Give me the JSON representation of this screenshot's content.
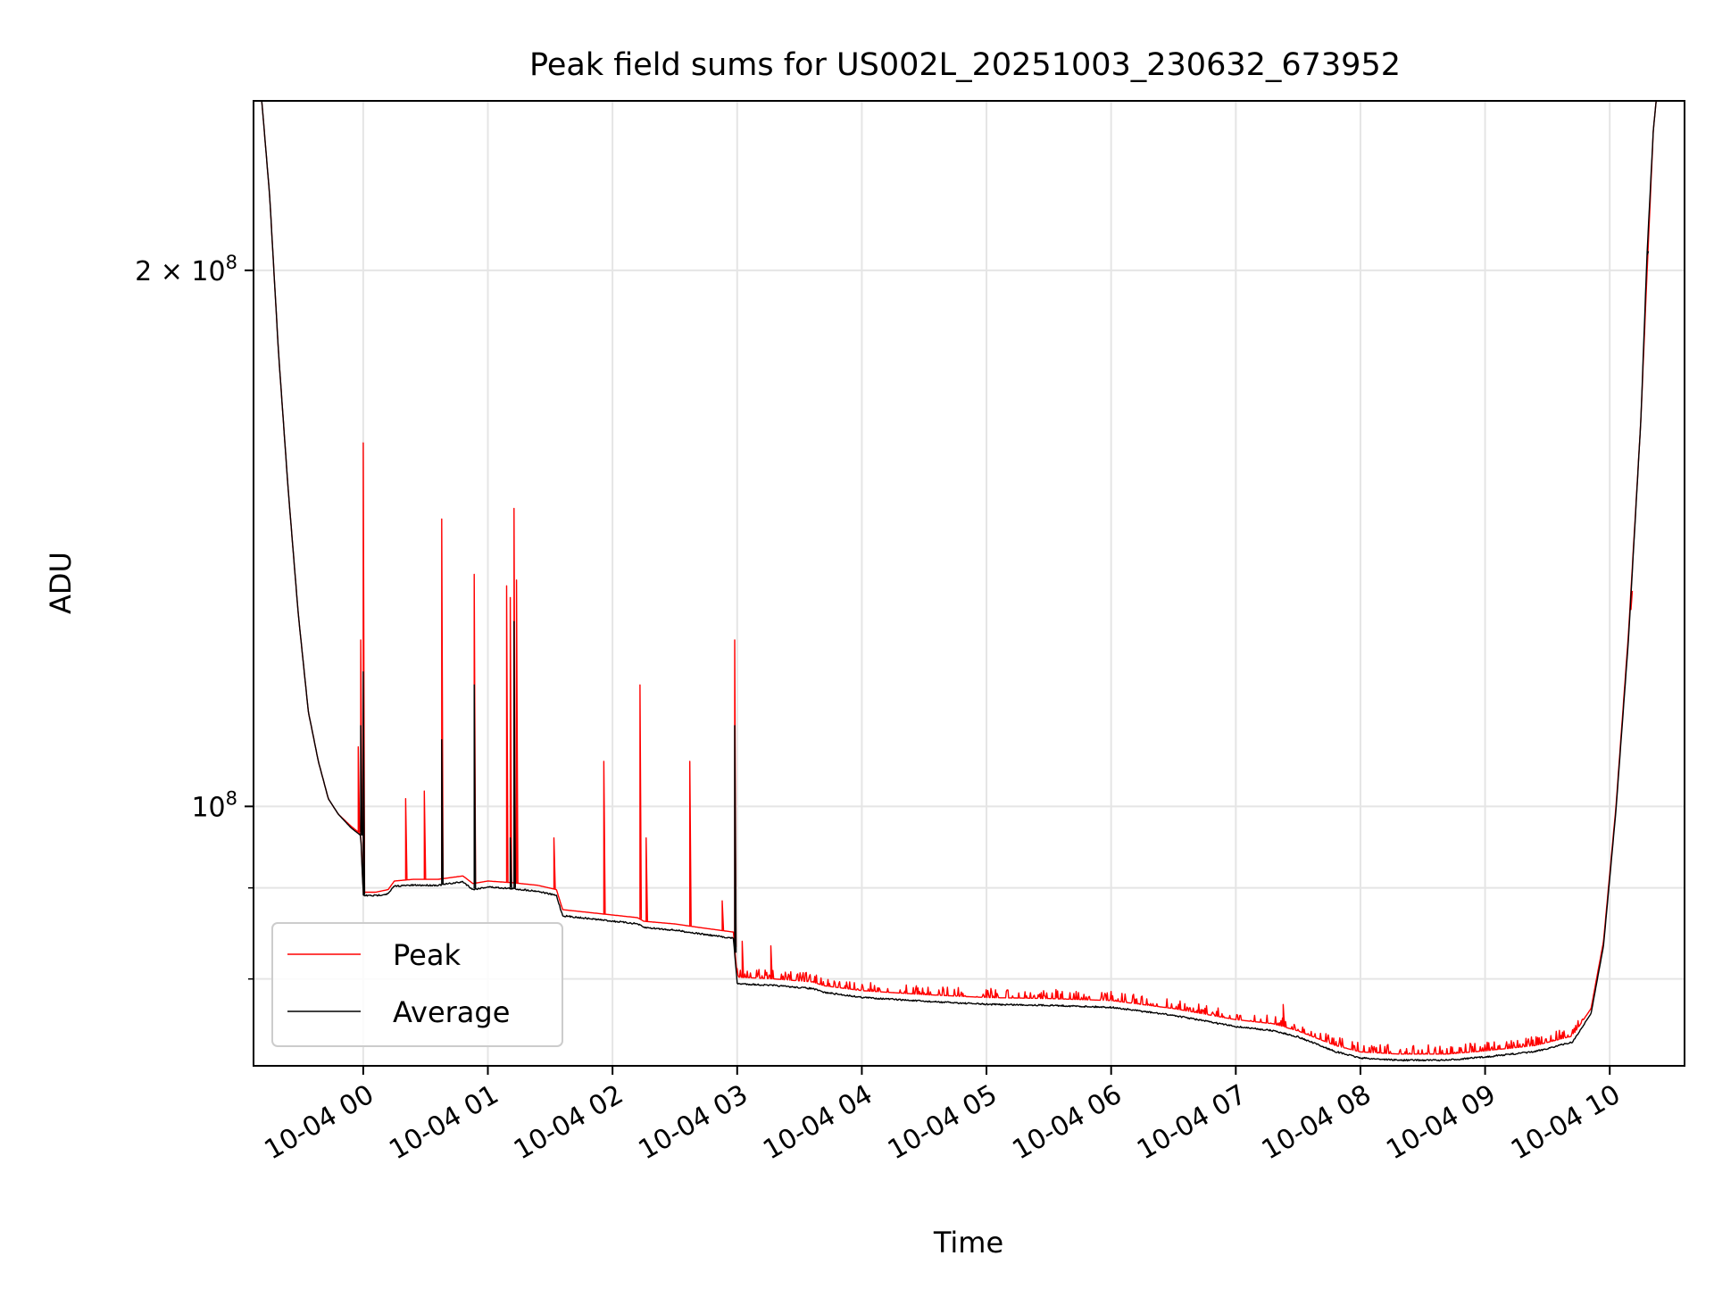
{
  "chart_data": {
    "type": "line",
    "title": "Peak field sums for US002L_20251003_230632_673952",
    "xlabel": "Time",
    "ylabel": "ADU",
    "yscale": "log",
    "ylim": [
      71500000,
      249000000
    ],
    "xlim_hours": [
      -0.88,
      10.6
    ],
    "x_unit": "hours relative to 10-04 00:00",
    "grid": true,
    "legend_position": "lower-left",
    "x_ticks": [
      {
        "value": 0,
        "label": "10-04 00"
      },
      {
        "value": 1,
        "label": "10-04 01"
      },
      {
        "value": 2,
        "label": "10-04 02"
      },
      {
        "value": 3,
        "label": "10-04 03"
      },
      {
        "value": 4,
        "label": "10-04 04"
      },
      {
        "value": 5,
        "label": "10-04 05"
      },
      {
        "value": 6,
        "label": "10-04 06"
      },
      {
        "value": 7,
        "label": "10-04 07"
      },
      {
        "value": 8,
        "label": "10-04 08"
      },
      {
        "value": 9,
        "label": "10-04 09"
      },
      {
        "value": 10,
        "label": "10-04 10"
      }
    ],
    "y_major_ticks": [
      {
        "value": 100000000,
        "base": "10",
        "exp": "8",
        "mult": ""
      },
      {
        "value": 200000000,
        "base": "10",
        "exp": "8",
        "mult": "2 × "
      }
    ],
    "y_minor_ticks": [
      80000000,
      90000000
    ],
    "series": [
      {
        "name": "Peak",
        "color": "#ff0000",
        "points": [
          [
            -0.82,
            252000000
          ],
          [
            -0.75,
            220000000
          ],
          [
            -0.68,
            180000000
          ],
          [
            -0.6,
            150000000
          ],
          [
            -0.52,
            128000000
          ],
          [
            -0.44,
            113000000
          ],
          [
            -0.36,
            106000000
          ],
          [
            -0.28,
            101000000
          ],
          [
            -0.2,
            99000000
          ],
          [
            -0.1,
            97500000
          ],
          [
            -0.02,
            96500000
          ],
          [
            0.0,
            89500000
          ],
          [
            0.1,
            89500000
          ],
          [
            0.2,
            89800000
          ],
          [
            0.25,
            90800000
          ],
          [
            0.4,
            91000000
          ],
          [
            0.6,
            91000000
          ],
          [
            0.8,
            91400000
          ],
          [
            0.88,
            90500000
          ],
          [
            1.0,
            90800000
          ],
          [
            1.2,
            90600000
          ],
          [
            1.4,
            90300000
          ],
          [
            1.55,
            89800000
          ],
          [
            1.6,
            87500000
          ],
          [
            1.8,
            87200000
          ],
          [
            2.0,
            86900000
          ],
          [
            2.2,
            86600000
          ],
          [
            2.25,
            86200000
          ],
          [
            2.5,
            85900000
          ],
          [
            2.7,
            85500000
          ],
          [
            2.97,
            85000000
          ],
          [
            3.0,
            80200000
          ],
          [
            3.3,
            80000000
          ],
          [
            3.6,
            79700000
          ],
          [
            3.7,
            79300000
          ],
          [
            4.0,
            78800000
          ],
          [
            4.5,
            78400000
          ],
          [
            5.0,
            78100000
          ],
          [
            5.5,
            78000000
          ],
          [
            6.0,
            77800000
          ],
          [
            6.5,
            77000000
          ],
          [
            7.0,
            75900000
          ],
          [
            7.3,
            75500000
          ],
          [
            7.5,
            74800000
          ],
          [
            7.8,
            73400000
          ],
          [
            8.0,
            72800000
          ],
          [
            8.3,
            72600000
          ],
          [
            8.7,
            72600000
          ],
          [
            9.0,
            72900000
          ],
          [
            9.4,
            73400000
          ],
          [
            9.7,
            74300000
          ],
          [
            9.85,
            77000000
          ],
          [
            9.95,
            84000000
          ],
          [
            10.05,
            100000000
          ],
          [
            10.15,
            125000000
          ],
          [
            10.25,
            165000000
          ],
          [
            10.3,
            200000000
          ],
          [
            10.35,
            240000000
          ],
          [
            10.38,
            252000000
          ]
        ],
        "spikes": [
          [
            -0.04,
            108000000
          ],
          [
            -0.02,
            124000000
          ],
          [
            0.0,
            160000000
          ],
          [
            0.34,
            101000000
          ],
          [
            0.49,
            102000000
          ],
          [
            0.63,
            145000000
          ],
          [
            0.89,
            135000000
          ],
          [
            1.15,
            133000000
          ],
          [
            1.18,
            131000000
          ],
          [
            1.21,
            147000000
          ],
          [
            1.23,
            134000000
          ],
          [
            1.53,
            96000000
          ],
          [
            1.93,
            106000000
          ],
          [
            2.22,
            117000000
          ],
          [
            2.27,
            96000000
          ],
          [
            2.62,
            106000000
          ],
          [
            2.88,
            88500000
          ],
          [
            2.98,
            124000000
          ],
          [
            3.04,
            84000000
          ],
          [
            3.27,
            83500000
          ],
          [
            7.38,
            77400000
          ],
          [
            10.17,
            129000000
          ]
        ]
      },
      {
        "name": "Average",
        "color": "#000000",
        "points": [
          [
            -0.82,
            252000000
          ],
          [
            -0.75,
            220000000
          ],
          [
            -0.68,
            180000000
          ],
          [
            -0.6,
            150000000
          ],
          [
            -0.52,
            128000000
          ],
          [
            -0.44,
            113000000
          ],
          [
            -0.36,
            106000000
          ],
          [
            -0.28,
            101000000
          ],
          [
            -0.2,
            99000000
          ],
          [
            -0.1,
            97300000
          ],
          [
            -0.02,
            96300000
          ],
          [
            0.0,
            89200000
          ],
          [
            0.1,
            89200000
          ],
          [
            0.2,
            89400000
          ],
          [
            0.25,
            90300000
          ],
          [
            0.4,
            90400000
          ],
          [
            0.6,
            90400000
          ],
          [
            0.8,
            90800000
          ],
          [
            0.88,
            89900000
          ],
          [
            1.0,
            90200000
          ],
          [
            1.2,
            90000000
          ],
          [
            1.4,
            89700000
          ],
          [
            1.55,
            89200000
          ],
          [
            1.6,
            86900000
          ],
          [
            1.8,
            86600000
          ],
          [
            2.0,
            86300000
          ],
          [
            2.2,
            86000000
          ],
          [
            2.25,
            85600000
          ],
          [
            2.5,
            85300000
          ],
          [
            2.7,
            84900000
          ],
          [
            2.97,
            84400000
          ],
          [
            3.0,
            79600000
          ],
          [
            3.3,
            79400000
          ],
          [
            3.6,
            79100000
          ],
          [
            3.7,
            78700000
          ],
          [
            4.0,
            78200000
          ],
          [
            4.5,
            77800000
          ],
          [
            5.0,
            77500000
          ],
          [
            5.5,
            77400000
          ],
          [
            6.0,
            77200000
          ],
          [
            6.5,
            76400000
          ],
          [
            7.0,
            75300000
          ],
          [
            7.3,
            74900000
          ],
          [
            7.5,
            74300000
          ],
          [
            7.8,
            72900000
          ],
          [
            8.0,
            72300000
          ],
          [
            8.3,
            72100000
          ],
          [
            8.7,
            72100000
          ],
          [
            9.0,
            72400000
          ],
          [
            9.4,
            72900000
          ],
          [
            9.7,
            73800000
          ],
          [
            9.85,
            76500000
          ],
          [
            9.95,
            83500000
          ],
          [
            10.05,
            99500000
          ],
          [
            10.15,
            124000000
          ],
          [
            10.25,
            165000000
          ],
          [
            10.3,
            205000000
          ],
          [
            10.35,
            240000000
          ],
          [
            10.38,
            252000000
          ]
        ],
        "spikes": [
          [
            -0.02,
            111000000
          ],
          [
            0.0,
            119000000
          ],
          [
            0.63,
            109000000
          ],
          [
            0.89,
            117000000
          ],
          [
            1.18,
            96000000
          ],
          [
            1.21,
            127000000
          ],
          [
            2.98,
            111000000
          ],
          [
            10.3,
            204000000
          ]
        ]
      }
    ]
  }
}
